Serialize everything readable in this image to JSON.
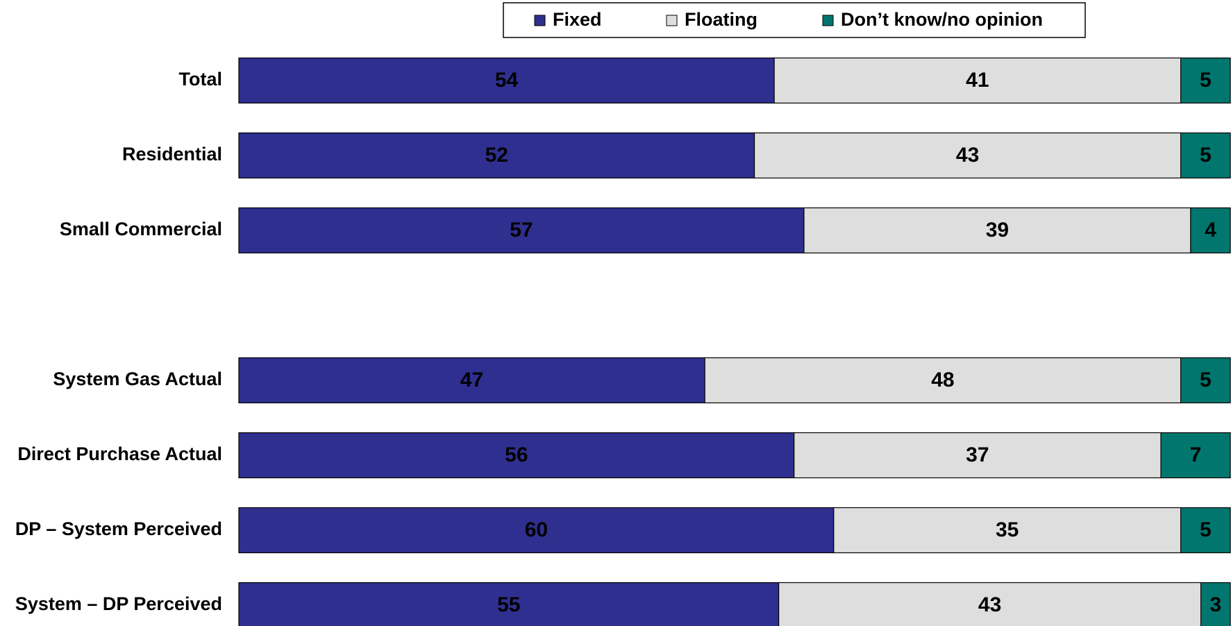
{
  "chart_data": {
    "type": "stacked_barh",
    "categories": [
      "Total",
      "Residential",
      "Small Commercial",
      "System Gas Actual",
      "Direct Purchase Actual",
      "DP – System Perceived",
      "System – DP Perceived"
    ],
    "series": [
      {
        "name": "Fixed",
        "color": "#2f2f8f",
        "values": [
          54,
          52,
          57,
          47,
          56,
          60,
          55
        ]
      },
      {
        "name": "Floating",
        "color": "#dedede",
        "values": [
          41,
          43,
          39,
          48,
          37,
          35,
          43
        ]
      },
      {
        "name": "Don’t know/no opinion",
        "color": "#00766e",
        "values": [
          5,
          5,
          4,
          5,
          7,
          5,
          3
        ]
      }
    ],
    "legend": "top"
  }
}
